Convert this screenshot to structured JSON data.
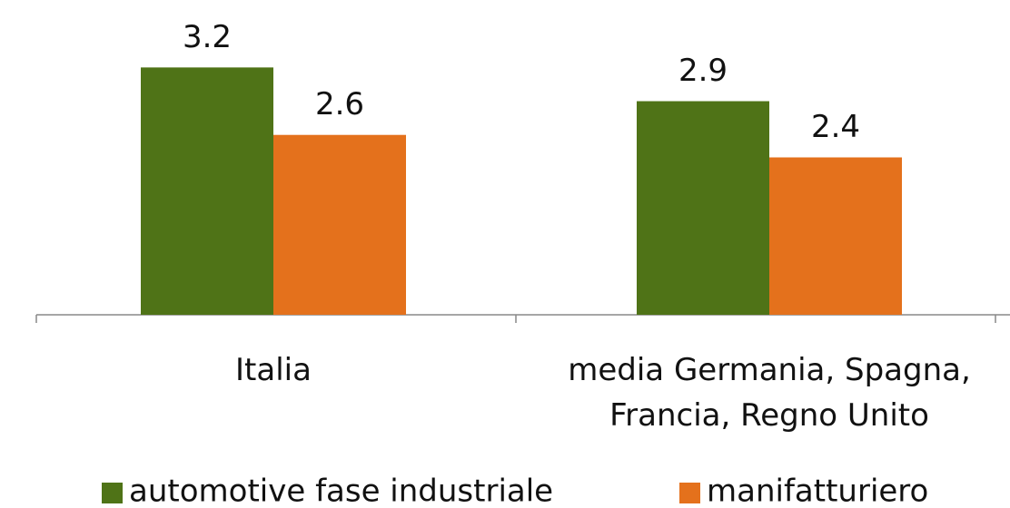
{
  "chart_data": {
    "type": "bar",
    "categories": [
      "Italia",
      "media Germania, Spagna, Francia, Regno Unito"
    ],
    "series": [
      {
        "name": "automotive fase industriale",
        "color": "#4f7317",
        "values": [
          3.2,
          2.9
        ]
      },
      {
        "name": "manifatturiero",
        "color": "#e4711c",
        "values": [
          2.6,
          2.4
        ]
      }
    ],
    "ylim": [
      1,
      3.8
    ],
    "legend": "bottom"
  }
}
